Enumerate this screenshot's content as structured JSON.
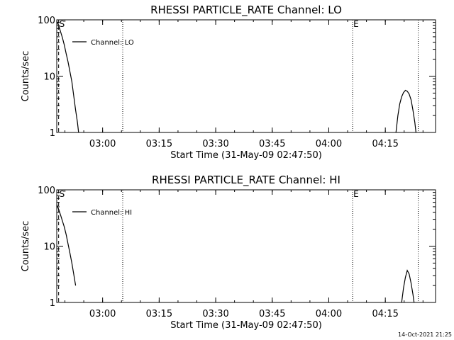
{
  "footer": {
    "timestamp": "14-Oct-2021 21:25"
  },
  "chart_data": [
    {
      "type": "line",
      "title": "RHESSI PARTICLE_RATE Channel: LO",
      "xlabel": "Start Time (31-May-09 02:47:50)",
      "ylabel": "Counts/sec",
      "y_scale": "log",
      "ylim": [
        1,
        100
      ],
      "x_unit": "minutes since 02:47:50",
      "xlim": [
        0,
        100.5
      ],
      "x_ticks": [
        {
          "x": 12.17,
          "label": "03:00"
        },
        {
          "x": 27.17,
          "label": "03:15"
        },
        {
          "x": 42.17,
          "label": "03:30"
        },
        {
          "x": 57.17,
          "label": "03:45"
        },
        {
          "x": 72.17,
          "label": "04:00"
        },
        {
          "x": 87.17,
          "label": "04:15"
        }
      ],
      "y_ticks": [
        {
          "y": 1,
          "label": "1"
        },
        {
          "y": 10,
          "label": "10"
        },
        {
          "y": 100,
          "label": "100"
        }
      ],
      "legend": {
        "label": "Channel: LO",
        "position": "top-left"
      },
      "markers": [
        {
          "x": 0.5,
          "label": "S",
          "style": "dashed"
        },
        {
          "x": 17.5,
          "label": "",
          "style": "dotted"
        },
        {
          "x": 78.5,
          "label": "E",
          "style": "dotted"
        },
        {
          "x": 95.9,
          "label": "",
          "style": "dotted"
        }
      ],
      "series": [
        {
          "name": "Channel: LO",
          "segments": [
            [
              [
                0,
                95
              ],
              [
                0.5,
                80
              ],
              [
                1,
                62
              ],
              [
                1.5,
                48
              ],
              [
                2,
                36
              ],
              [
                2.5,
                25
              ],
              [
                3,
                18
              ],
              [
                3.5,
                12
              ],
              [
                4,
                8
              ],
              [
                4.5,
                4.5
              ],
              [
                5,
                2.5
              ],
              [
                5.5,
                1.5
              ],
              [
                5.8,
                1
              ]
            ],
            [
              [
                90,
                1
              ],
              [
                90.5,
                2
              ],
              [
                91,
                3.2
              ],
              [
                91.5,
                4.3
              ],
              [
                92,
                5.1
              ],
              [
                92.5,
                5.6
              ],
              [
                93,
                5.4
              ],
              [
                93.5,
                4.8
              ],
              [
                94,
                3.8
              ],
              [
                94.5,
                2.5
              ],
              [
                95,
                1.5
              ],
              [
                95.3,
                1
              ]
            ]
          ]
        }
      ]
    },
    {
      "type": "line",
      "title": "RHESSI PARTICLE_RATE Channel: HI",
      "xlabel": "Start Time (31-May-09 02:47:50)",
      "ylabel": "Counts/sec",
      "y_scale": "log",
      "ylim": [
        1,
        100
      ],
      "x_unit": "minutes since 02:47:50",
      "xlim": [
        0,
        100.5
      ],
      "x_ticks": [
        {
          "x": 12.17,
          "label": "03:00"
        },
        {
          "x": 27.17,
          "label": "03:15"
        },
        {
          "x": 42.17,
          "label": "03:30"
        },
        {
          "x": 57.17,
          "label": "03:45"
        },
        {
          "x": 72.17,
          "label": "04:00"
        },
        {
          "x": 87.17,
          "label": "04:15"
        }
      ],
      "y_ticks": [
        {
          "y": 1,
          "label": "1"
        },
        {
          "y": 10,
          "label": "10"
        },
        {
          "y": 100,
          "label": "100"
        }
      ],
      "legend": {
        "label": "Channel: HI",
        "position": "top-left"
      },
      "markers": [
        {
          "x": 0.5,
          "label": "S",
          "style": "dashed"
        },
        {
          "x": 17.5,
          "label": "",
          "style": "dotted"
        },
        {
          "x": 78.5,
          "label": "E",
          "style": "dotted"
        },
        {
          "x": 95.9,
          "label": "",
          "style": "dotted"
        }
      ],
      "series": [
        {
          "name": "Channel: HI",
          "segments": [
            [
              [
                0,
                55
              ],
              [
                0.5,
                45
              ],
              [
                1,
                36
              ],
              [
                1.5,
                28
              ],
              [
                2,
                22
              ],
              [
                2.5,
                16
              ],
              [
                3,
                11
              ],
              [
                3.5,
                7.5
              ],
              [
                4,
                5
              ],
              [
                4.5,
                3.2
              ],
              [
                5,
                2
              ]
            ],
            [
              [
                91.5,
                1
              ],
              [
                92,
                1.8
              ],
              [
                92.5,
                2.8
              ],
              [
                93,
                3.7
              ],
              [
                93.5,
                3.2
              ],
              [
                94,
                2.2
              ],
              [
                94.5,
                1.4
              ],
              [
                94.8,
                1
              ]
            ]
          ]
        }
      ]
    }
  ]
}
